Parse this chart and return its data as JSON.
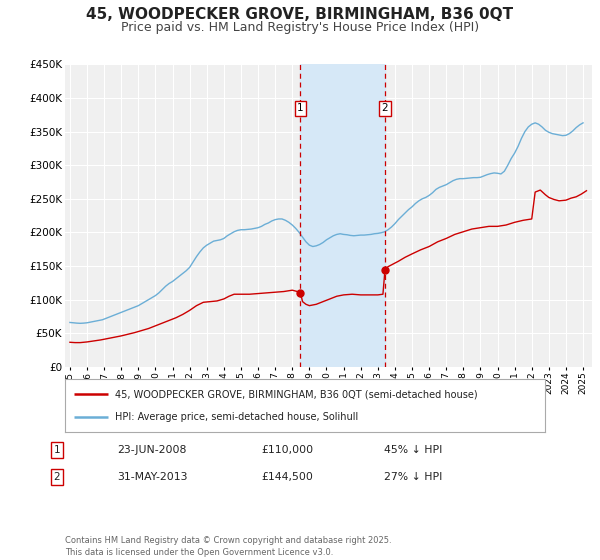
{
  "title": "45, WOODPECKER GROVE, BIRMINGHAM, B36 0QT",
  "subtitle": "Price paid vs. HM Land Registry's House Price Index (HPI)",
  "title_fontsize": 11,
  "subtitle_fontsize": 9,
  "ylim": [
    0,
    450000
  ],
  "yticks": [
    0,
    50000,
    100000,
    150000,
    200000,
    250000,
    300000,
    350000,
    400000,
    450000
  ],
  "ytick_labels": [
    "£0",
    "£50K",
    "£100K",
    "£150K",
    "£200K",
    "£250K",
    "£300K",
    "£350K",
    "£400K",
    "£450K"
  ],
  "xlim_start": 1994.7,
  "xlim_end": 2025.5,
  "background_color": "#ffffff",
  "plot_bg_color": "#f0f0f0",
  "grid_color": "#ffffff",
  "hpi_color": "#6baed6",
  "price_color": "#cc0000",
  "shade_color": "#d6e8f7",
  "marker1_date": 2008.48,
  "marker2_date": 2013.42,
  "marker1_price": 110000,
  "marker2_price": 144500,
  "legend_label_price": "45, WOODPECKER GROVE, BIRMINGHAM, B36 0QT (semi-detached house)",
  "legend_label_hpi": "HPI: Average price, semi-detached house, Solihull",
  "annotation1_date": "23-JUN-2008",
  "annotation1_price": "£110,000",
  "annotation1_hpi": "45% ↓ HPI",
  "annotation2_date": "31-MAY-2013",
  "annotation2_price": "£144,500",
  "annotation2_hpi": "27% ↓ HPI",
  "footnote": "Contains HM Land Registry data © Crown copyright and database right 2025.\nThis data is licensed under the Open Government Licence v3.0.",
  "hpi_data": [
    [
      1995.0,
      66000
    ],
    [
      1995.1,
      65800
    ],
    [
      1995.2,
      65500
    ],
    [
      1995.3,
      65200
    ],
    [
      1995.4,
      65000
    ],
    [
      1995.5,
      64800
    ],
    [
      1995.6,
      64700
    ],
    [
      1995.7,
      64800
    ],
    [
      1995.8,
      65000
    ],
    [
      1995.9,
      65200
    ],
    [
      1996.0,
      65500
    ],
    [
      1996.1,
      66000
    ],
    [
      1996.2,
      66500
    ],
    [
      1996.3,
      67000
    ],
    [
      1996.4,
      67500
    ],
    [
      1996.5,
      68000
    ],
    [
      1996.6,
      68500
    ],
    [
      1996.7,
      69000
    ],
    [
      1996.8,
      69500
    ],
    [
      1996.9,
      70000
    ],
    [
      1997.0,
      71000
    ],
    [
      1997.2,
      73000
    ],
    [
      1997.4,
      75000
    ],
    [
      1997.6,
      77000
    ],
    [
      1997.8,
      79000
    ],
    [
      1998.0,
      81000
    ],
    [
      1998.2,
      83000
    ],
    [
      1998.4,
      85000
    ],
    [
      1998.6,
      87000
    ],
    [
      1998.8,
      89000
    ],
    [
      1999.0,
      91000
    ],
    [
      1999.2,
      94000
    ],
    [
      1999.4,
      97000
    ],
    [
      1999.6,
      100000
    ],
    [
      1999.8,
      103000
    ],
    [
      2000.0,
      106000
    ],
    [
      2000.2,
      110000
    ],
    [
      2000.4,
      115000
    ],
    [
      2000.6,
      120000
    ],
    [
      2000.8,
      124000
    ],
    [
      2001.0,
      127000
    ],
    [
      2001.2,
      131000
    ],
    [
      2001.4,
      135000
    ],
    [
      2001.6,
      139000
    ],
    [
      2001.8,
      143000
    ],
    [
      2002.0,
      148000
    ],
    [
      2002.2,
      156000
    ],
    [
      2002.4,
      164000
    ],
    [
      2002.6,
      171000
    ],
    [
      2002.8,
      177000
    ],
    [
      2003.0,
      181000
    ],
    [
      2003.2,
      184000
    ],
    [
      2003.4,
      187000
    ],
    [
      2003.6,
      188000
    ],
    [
      2003.8,
      189000
    ],
    [
      2004.0,
      191000
    ],
    [
      2004.2,
      195000
    ],
    [
      2004.4,
      198000
    ],
    [
      2004.6,
      201000
    ],
    [
      2004.8,
      203000
    ],
    [
      2005.0,
      204000
    ],
    [
      2005.2,
      204000
    ],
    [
      2005.4,
      204500
    ],
    [
      2005.6,
      205000
    ],
    [
      2005.8,
      206000
    ],
    [
      2006.0,
      207000
    ],
    [
      2006.2,
      209000
    ],
    [
      2006.4,
      212000
    ],
    [
      2006.6,
      214000
    ],
    [
      2006.8,
      217000
    ],
    [
      2007.0,
      219000
    ],
    [
      2007.2,
      220000
    ],
    [
      2007.4,
      220000
    ],
    [
      2007.6,
      218000
    ],
    [
      2007.8,
      215000
    ],
    [
      2008.0,
      211000
    ],
    [
      2008.2,
      206000
    ],
    [
      2008.4,
      200000
    ],
    [
      2008.6,
      193000
    ],
    [
      2008.8,
      186000
    ],
    [
      2009.0,
      181000
    ],
    [
      2009.2,
      179000
    ],
    [
      2009.4,
      180000
    ],
    [
      2009.6,
      182000
    ],
    [
      2009.8,
      185000
    ],
    [
      2010.0,
      189000
    ],
    [
      2010.2,
      192000
    ],
    [
      2010.4,
      195000
    ],
    [
      2010.6,
      197000
    ],
    [
      2010.8,
      198000
    ],
    [
      2011.0,
      197000
    ],
    [
      2011.2,
      196500
    ],
    [
      2011.4,
      195500
    ],
    [
      2011.6,
      195000
    ],
    [
      2011.8,
      195500
    ],
    [
      2012.0,
      196000
    ],
    [
      2012.2,
      196000
    ],
    [
      2012.4,
      196500
    ],
    [
      2012.6,
      197000
    ],
    [
      2012.8,
      198000
    ],
    [
      2013.0,
      198500
    ],
    [
      2013.2,
      199500
    ],
    [
      2013.4,
      201000
    ],
    [
      2013.6,
      204000
    ],
    [
      2013.8,
      208000
    ],
    [
      2014.0,
      213000
    ],
    [
      2014.2,
      219000
    ],
    [
      2014.4,
      224000
    ],
    [
      2014.6,
      229000
    ],
    [
      2014.8,
      234000
    ],
    [
      2015.0,
      238000
    ],
    [
      2015.2,
      243000
    ],
    [
      2015.4,
      247000
    ],
    [
      2015.6,
      250000
    ],
    [
      2015.8,
      252000
    ],
    [
      2016.0,
      255000
    ],
    [
      2016.2,
      259000
    ],
    [
      2016.4,
      264000
    ],
    [
      2016.6,
      267000
    ],
    [
      2016.8,
      269000
    ],
    [
      2017.0,
      271000
    ],
    [
      2017.2,
      274000
    ],
    [
      2017.4,
      277000
    ],
    [
      2017.6,
      279000
    ],
    [
      2017.8,
      280000
    ],
    [
      2018.0,
      280000
    ],
    [
      2018.2,
      280500
    ],
    [
      2018.4,
      281000
    ],
    [
      2018.6,
      281500
    ],
    [
      2018.8,
      281500
    ],
    [
      2019.0,
      282000
    ],
    [
      2019.2,
      284000
    ],
    [
      2019.4,
      286000
    ],
    [
      2019.6,
      287500
    ],
    [
      2019.8,
      288500
    ],
    [
      2020.0,
      288000
    ],
    [
      2020.2,
      287000
    ],
    [
      2020.4,
      291000
    ],
    [
      2020.6,
      300000
    ],
    [
      2020.8,
      310000
    ],
    [
      2021.0,
      318000
    ],
    [
      2021.2,
      328000
    ],
    [
      2021.4,
      340000
    ],
    [
      2021.6,
      350000
    ],
    [
      2021.8,
      357000
    ],
    [
      2022.0,
      361000
    ],
    [
      2022.2,
      363000
    ],
    [
      2022.4,
      361000
    ],
    [
      2022.6,
      357000
    ],
    [
      2022.8,
      352000
    ],
    [
      2023.0,
      349000
    ],
    [
      2023.2,
      347000
    ],
    [
      2023.4,
      346000
    ],
    [
      2023.6,
      345000
    ],
    [
      2023.8,
      344000
    ],
    [
      2024.0,
      344500
    ],
    [
      2024.2,
      347000
    ],
    [
      2024.4,
      351000
    ],
    [
      2024.6,
      356000
    ],
    [
      2024.8,
      360000
    ],
    [
      2025.0,
      363000
    ]
  ],
  "price_data": [
    [
      1995.0,
      36500
    ],
    [
      1995.3,
      36000
    ],
    [
      1995.6,
      36000
    ],
    [
      1996.0,
      37000
    ],
    [
      1996.4,
      38500
    ],
    [
      1996.8,
      40000
    ],
    [
      1997.2,
      42000
    ],
    [
      1997.6,
      44000
    ],
    [
      1998.0,
      46000
    ],
    [
      1998.4,
      48500
    ],
    [
      1998.8,
      51000
    ],
    [
      1999.2,
      54000
    ],
    [
      1999.6,
      57000
    ],
    [
      2000.0,
      61000
    ],
    [
      2000.4,
      65000
    ],
    [
      2000.8,
      69000
    ],
    [
      2001.2,
      73000
    ],
    [
      2001.6,
      78000
    ],
    [
      2002.0,
      84000
    ],
    [
      2002.4,
      91000
    ],
    [
      2002.8,
      96000
    ],
    [
      2003.2,
      97000
    ],
    [
      2003.6,
      98000
    ],
    [
      2004.0,
      101000
    ],
    [
      2004.3,
      105000
    ],
    [
      2004.6,
      108000
    ],
    [
      2005.0,
      108000
    ],
    [
      2005.5,
      108000
    ],
    [
      2006.0,
      109000
    ],
    [
      2006.5,
      110000
    ],
    [
      2007.0,
      111000
    ],
    [
      2007.5,
      112000
    ],
    [
      2008.0,
      114000
    ],
    [
      2008.3,
      112000
    ],
    [
      2008.48,
      110000
    ],
    [
      2008.6,
      97000
    ],
    [
      2008.8,
      93000
    ],
    [
      2009.0,
      91000
    ],
    [
      2009.4,
      93000
    ],
    [
      2009.8,
      97000
    ],
    [
      2010.2,
      101000
    ],
    [
      2010.6,
      105000
    ],
    [
      2011.0,
      107000
    ],
    [
      2011.5,
      108000
    ],
    [
      2012.0,
      107000
    ],
    [
      2012.5,
      107000
    ],
    [
      2013.0,
      107000
    ],
    [
      2013.3,
      108000
    ],
    [
      2013.42,
      144500
    ],
    [
      2013.6,
      149000
    ],
    [
      2013.9,
      153000
    ],
    [
      2014.2,
      157000
    ],
    [
      2014.6,
      163000
    ],
    [
      2015.0,
      168000
    ],
    [
      2015.5,
      174000
    ],
    [
      2016.0,
      179000
    ],
    [
      2016.5,
      186000
    ],
    [
      2017.0,
      191000
    ],
    [
      2017.5,
      197000
    ],
    [
      2018.0,
      201000
    ],
    [
      2018.5,
      205000
    ],
    [
      2019.0,
      207000
    ],
    [
      2019.5,
      209000
    ],
    [
      2020.0,
      209000
    ],
    [
      2020.5,
      211000
    ],
    [
      2021.0,
      215000
    ],
    [
      2021.5,
      218000
    ],
    [
      2022.0,
      220000
    ],
    [
      2022.2,
      260000
    ],
    [
      2022.5,
      263000
    ],
    [
      2022.8,
      256000
    ],
    [
      2023.0,
      252000
    ],
    [
      2023.3,
      249000
    ],
    [
      2023.6,
      247000
    ],
    [
      2024.0,
      248000
    ],
    [
      2024.3,
      251000
    ],
    [
      2024.6,
      253000
    ],
    [
      2024.9,
      257000
    ],
    [
      2025.2,
      262000
    ]
  ]
}
